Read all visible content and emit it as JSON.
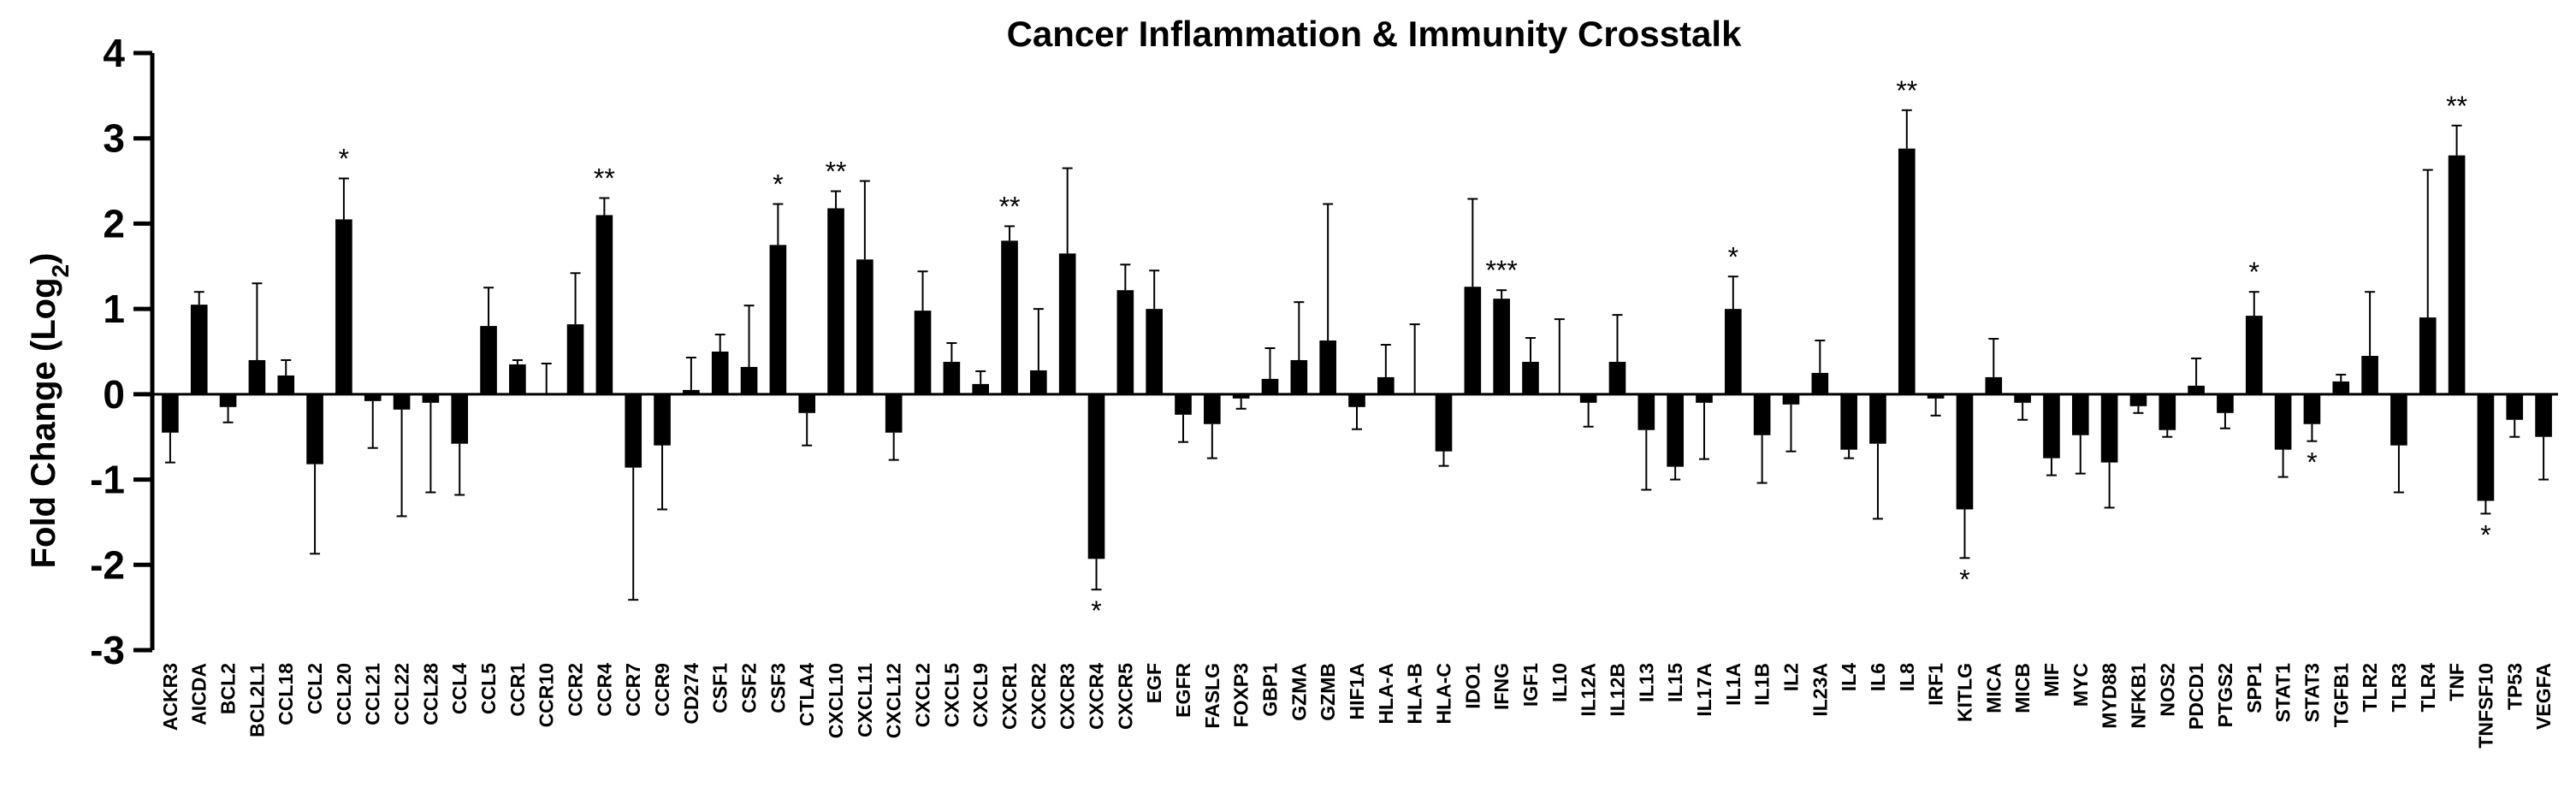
{
  "chart_data": {
    "type": "bar",
    "title": "Cancer Inflammation & Immunity Crosstalk",
    "xlabel": "",
    "ylabel": "Fold Change (Log2)",
    "ylabel_parts": {
      "main": "Fold Change (Log",
      "sub": "2",
      "close": ")"
    },
    "ylim": [
      -3,
      4
    ],
    "yticks": [
      "4",
      "3",
      "2",
      "1",
      "0",
      "-1",
      "-2",
      "-3"
    ],
    "ytick_values": [
      4,
      3,
      2,
      1,
      0,
      -1,
      -2,
      -3
    ],
    "categories": [
      "ACKR3",
      "AICDA",
      "BCL2",
      "BCL2L1",
      "CCL18",
      "CCL2",
      "CCL20",
      "CCL21",
      "CCL22",
      "CCL28",
      "CCL4",
      "CCL5",
      "CCR1",
      "CCR10",
      "CCR2",
      "CCR4",
      "CCR7",
      "CCR9",
      "CD274",
      "CSF1",
      "CSF2",
      "CSF3",
      "CTLA4",
      "CXCL10",
      "CXCL11",
      "CXCL12",
      "CXCL2",
      "CXCL5",
      "CXCL9",
      "CXCR1",
      "CXCR2",
      "CXCR3",
      "CXCR4",
      "CXCR5",
      "EGF",
      "EGFR",
      "FASLG",
      "FOXP3",
      "GBP1",
      "GZMA",
      "GZMB",
      "HIF1A",
      "HLA-A",
      "HLA-B",
      "HLA-C",
      "IDO1",
      "IFNG",
      "IGF1",
      "IL10",
      "IL12A",
      "IL12B",
      "IL13",
      "IL15",
      "IL17A",
      "IL1A",
      "IL1B",
      "IL2",
      "IL23A",
      "IL4",
      "IL6",
      "IL8",
      "IRF1",
      "KITLG",
      "MICA",
      "MICB",
      "MIF",
      "MYC",
      "MYD88",
      "NFKB1",
      "NOS2",
      "PDCD1",
      "PTGS2",
      "SPP1",
      "STAT1",
      "STAT3",
      "TGFB1",
      "TLR2",
      "TLR3",
      "TLR4",
      "TNF",
      "TNFSF10",
      "TP53",
      "VEGFA"
    ],
    "values": [
      -0.45,
      1.05,
      -0.15,
      0.4,
      0.22,
      -0.82,
      2.05,
      -0.08,
      -0.18,
      -0.1,
      -0.58,
      0.8,
      0.35,
      0.0,
      0.82,
      2.1,
      -0.86,
      -0.6,
      0.05,
      0.5,
      0.32,
      1.75,
      -0.22,
      2.18,
      1.58,
      -0.45,
      0.98,
      0.38,
      0.12,
      1.8,
      0.28,
      1.65,
      -1.93,
      1.22,
      1.0,
      -0.24,
      -0.35,
      -0.05,
      0.18,
      0.4,
      0.63,
      -0.15,
      0.2,
      0.0,
      -0.67,
      1.26,
      1.12,
      0.38,
      0.0,
      -0.1,
      0.38,
      -0.42,
      -0.85,
      -0.1,
      1.0,
      -0.48,
      -0.12,
      0.25,
      -0.65,
      -0.58,
      2.88,
      -0.05,
      -1.35,
      0.2,
      -0.1,
      -0.75,
      -0.48,
      -0.8,
      -0.14,
      -0.42,
      0.1,
      -0.22,
      0.92,
      -0.65,
      -0.35,
      0.15,
      0.45,
      -0.6,
      0.9,
      2.8,
      -1.25,
      -0.3,
      -0.5
    ],
    "errors": [
      0.35,
      0.15,
      0.18,
      0.9,
      0.18,
      1.05,
      0.48,
      0.55,
      1.25,
      1.05,
      0.6,
      0.45,
      0.05,
      0.36,
      0.6,
      0.2,
      1.55,
      0.75,
      0.38,
      0.2,
      0.72,
      0.48,
      0.38,
      0.2,
      0.92,
      0.32,
      0.46,
      0.22,
      0.15,
      0.17,
      0.72,
      1.0,
      0.36,
      0.3,
      0.45,
      0.32,
      0.4,
      0.12,
      0.36,
      0.68,
      1.6,
      0.26,
      0.38,
      0.82,
      0.17,
      1.03,
      0.1,
      0.28,
      0.88,
      0.28,
      0.55,
      0.7,
      0.15,
      0.66,
      0.38,
      0.56,
      0.55,
      0.38,
      0.1,
      0.88,
      0.45,
      0.2,
      0.57,
      0.45,
      0.2,
      0.2,
      0.45,
      0.53,
      0.08,
      0.08,
      0.32,
      0.18,
      0.28,
      0.32,
      0.2,
      0.08,
      0.75,
      0.55,
      1.73,
      0.35,
      0.15,
      0.2,
      0.5
    ],
    "significance": [
      "",
      "",
      "",
      "",
      "",
      "",
      "*",
      "",
      "",
      "",
      "",
      "",
      "",
      "",
      "",
      "**",
      "",
      "",
      "",
      "",
      "",
      "*",
      "",
      "**",
      "",
      "",
      "",
      "",
      "",
      "**",
      "",
      "",
      "*",
      "",
      "",
      "",
      "",
      "",
      "",
      "",
      "",
      "",
      "",
      "",
      "",
      "",
      "***",
      "",
      "",
      "",
      "",
      "",
      "",
      "",
      "*",
      "",
      "",
      "",
      "",
      "",
      "**",
      "",
      "*",
      "",
      "",
      "",
      "",
      "",
      "",
      "",
      "",
      "",
      "*",
      "",
      "*",
      "",
      "",
      "",
      "",
      "**",
      "*",
      "",
      ""
    ]
  }
}
